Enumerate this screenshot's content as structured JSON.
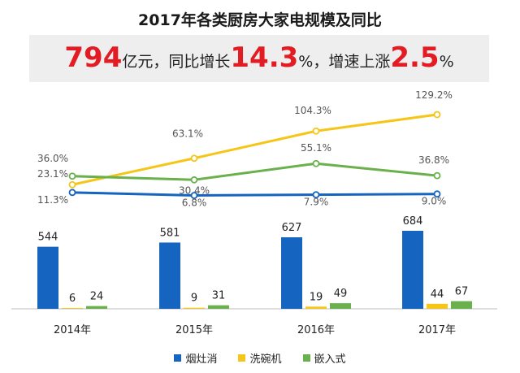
{
  "title": "2017年各类厨房大家电规模及同比",
  "banner": {
    "v1": "794",
    "t1": "亿元，同比增长",
    "v2": "14.3",
    "t2": "%，增速上涨",
    "v3": "2.5",
    "t3": "%"
  },
  "colors": {
    "blue": "#1565c0",
    "yellow": "#f5c518",
    "green": "#6ab04c",
    "axis": "#bdbdbd"
  },
  "chart_data": [
    {
      "type": "line",
      "title": "",
      "x": [
        "2014年",
        "2015年",
        "2016年",
        "2017年"
      ],
      "series": [
        {
          "name": "洗碗机",
          "values": [
            23.1,
            63.1,
            104.3,
            129.2
          ],
          "labels": [
            "23.1%",
            "63.1%",
            "104.3%",
            "129.2%"
          ],
          "color": "#f5c518"
        },
        {
          "name": "嵌入式",
          "values": [
            36.0,
            30.4,
            55.1,
            36.8
          ],
          "labels": [
            "36.0%",
            "30.4%",
            "55.1%",
            "36.8%"
          ],
          "color": "#6ab04c"
        },
        {
          "name": "烟灶消",
          "values": [
            11.3,
            6.8,
            7.9,
            9.0
          ],
          "labels": [
            "11.3%",
            "6.8%",
            "7.9%",
            "9.0%"
          ],
          "color": "#1565c0"
        }
      ]
    },
    {
      "type": "bar",
      "categories": [
        "2014年",
        "2015年",
        "2016年",
        "2017年"
      ],
      "series": [
        {
          "name": "烟灶消",
          "values": [
            544,
            581,
            627,
            684
          ],
          "color": "#1565c0"
        },
        {
          "name": "洗碗机",
          "values": [
            6,
            9,
            19,
            44
          ],
          "color": "#f5c518"
        },
        {
          "name": "嵌入式",
          "values": [
            24,
            31,
            49,
            67
          ],
          "color": "#6ab04c"
        }
      ],
      "legend": "bottom-center"
    }
  ]
}
